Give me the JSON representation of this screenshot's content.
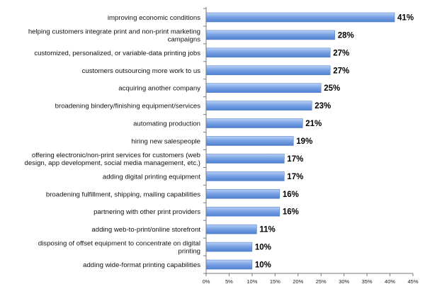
{
  "chart_data": {
    "type": "bar",
    "orientation": "horizontal",
    "categories": [
      [
        "improving economic conditions"
      ],
      [
        "helping customers integrate print and non-print marketing",
        "campaigns"
      ],
      [
        "customized, personalized, or variable-data printing jobs"
      ],
      [
        "customers outsourcing more work to us"
      ],
      [
        "acquiring another company"
      ],
      [
        "broadening bindery/finishing equipment/services"
      ],
      [
        "automating production"
      ],
      [
        "hiring new salespeople"
      ],
      [
        "offering electronic/non-print services for customers (web",
        "design, app development, social media management, etc.)"
      ],
      [
        "adding digital printing equipment"
      ],
      [
        "broadening fulfillment, shipping, mailing capabilities"
      ],
      [
        "partnering with other print providers"
      ],
      [
        "adding web-to-print/online storefront"
      ],
      [
        "disposing of offset equipment to concentrate on digital",
        "printing"
      ],
      [
        "adding wide-format printing capabilities"
      ]
    ],
    "values": [
      41,
      28,
      27,
      27,
      25,
      23,
      21,
      19,
      17,
      17,
      16,
      16,
      11,
      10,
      10
    ],
    "value_labels": [
      "41%",
      "28%",
      "27%",
      "27%",
      "25%",
      "23%",
      "21%",
      "19%",
      "17%",
      "17%",
      "16%",
      "16%",
      "11%",
      "10%",
      "10%"
    ],
    "xticks": [
      "0%",
      "5%",
      "10%",
      "15%",
      "20%",
      "25%",
      "30%",
      "35%",
      "40%",
      "45%"
    ],
    "xlim": [
      0,
      45
    ],
    "title": "",
    "xlabel": "",
    "ylabel": "",
    "grid": false,
    "bar_color": "#6f9be0"
  }
}
